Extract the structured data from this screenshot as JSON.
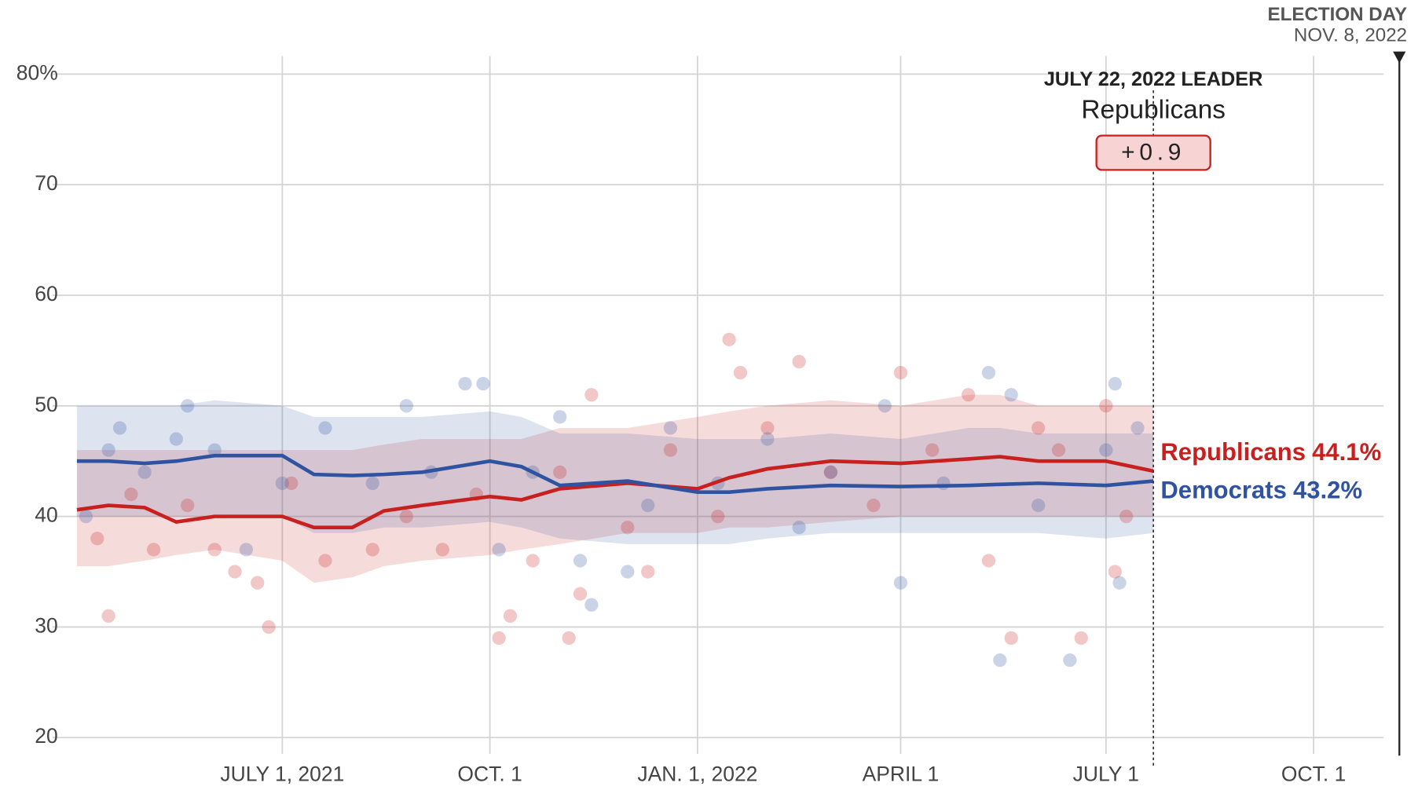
{
  "chart_data": {
    "type": "line",
    "x": [
      "2021-04-01",
      "2021-04-15",
      "2021-05-01",
      "2021-05-15",
      "2021-06-01",
      "2021-07-01",
      "2021-07-15",
      "2021-08-01",
      "2021-08-15",
      "2021-09-01",
      "2021-10-01",
      "2021-10-15",
      "2021-11-01",
      "2021-12-01",
      "2022-01-01",
      "2022-01-15",
      "2022-02-01",
      "2022-03-01",
      "2022-04-01",
      "2022-05-01",
      "2022-05-15",
      "2022-06-01",
      "2022-07-01",
      "2022-07-22"
    ],
    "series": [
      {
        "name": "Republicans",
        "color": "#c8201e",
        "end_label": "44.1%",
        "values": [
          40.6,
          41.0,
          40.8,
          39.5,
          40.0,
          40.0,
          39.0,
          39.0,
          40.5,
          41.0,
          41.8,
          41.5,
          42.5,
          43.0,
          42.5,
          43.5,
          44.3,
          45.0,
          44.8,
          45.2,
          45.4,
          45.0,
          45.0,
          44.1
        ],
        "lower": [
          35.5,
          35.5,
          36,
          36.5,
          37,
          36,
          34,
          34.5,
          35.5,
          36,
          36.5,
          37,
          37.5,
          38.5,
          38.5,
          39,
          39,
          39.5,
          40,
          40,
          40,
          40,
          40,
          40
        ],
        "upper": [
          46,
          46,
          46,
          46,
          46,
          46,
          46,
          46,
          46.5,
          47,
          47,
          47,
          48,
          48,
          49,
          49.5,
          50,
          50.5,
          50,
          51,
          51,
          50,
          50,
          50
        ],
        "poll_x": [
          "2021-04-10",
          "2021-04-15",
          "2021-04-25",
          "2021-05-05",
          "2021-05-20",
          "2021-06-01",
          "2021-06-10",
          "2021-06-20",
          "2021-06-25",
          "2021-07-05",
          "2021-07-20",
          "2021-08-10",
          "2021-08-25",
          "2021-09-10",
          "2021-09-25",
          "2021-10-05",
          "2021-10-10",
          "2021-10-20",
          "2021-11-01",
          "2021-11-05",
          "2021-11-10",
          "2021-11-15",
          "2021-12-01",
          "2021-12-10",
          "2021-12-20",
          "2022-01-10",
          "2022-01-15",
          "2022-01-20",
          "2022-02-01",
          "2022-02-15",
          "2022-03-01",
          "2022-03-20",
          "2022-04-01",
          "2022-04-15",
          "2022-05-01",
          "2022-05-10",
          "2022-05-20",
          "2022-06-01",
          "2022-06-10",
          "2022-06-20",
          "2022-07-01",
          "2022-07-05",
          "2022-07-10"
        ],
        "poll_values": [
          38,
          31,
          42,
          37,
          41,
          37,
          35,
          34,
          30,
          43,
          36,
          37,
          40,
          37,
          42,
          29,
          31,
          36,
          44,
          29,
          33,
          51,
          39,
          35,
          46,
          40,
          56,
          53,
          48,
          54,
          44,
          41,
          53,
          46,
          51,
          36,
          29,
          48,
          46,
          29,
          50,
          35,
          40
        ]
      },
      {
        "name": "Democrats",
        "color": "#2f53a0",
        "end_label": "43.2%",
        "values": [
          45.0,
          45.0,
          44.8,
          45.0,
          45.5,
          45.5,
          43.8,
          43.7,
          43.8,
          44.0,
          45.0,
          44.5,
          42.8,
          43.2,
          42.2,
          42.2,
          42.5,
          42.8,
          42.7,
          42.8,
          42.9,
          43.0,
          42.8,
          43.2
        ],
        "lower": [
          40,
          40,
          40,
          40,
          40,
          40,
          38.5,
          38.5,
          39,
          39,
          39.5,
          39,
          38,
          37.5,
          37.5,
          37.5,
          38,
          38.5,
          38.5,
          38.5,
          38.5,
          38.5,
          38,
          38.5
        ],
        "upper": [
          50,
          50,
          50,
          50,
          50.5,
          50,
          49,
          49,
          49,
          49,
          49.5,
          49,
          47.5,
          47.5,
          47,
          47,
          47,
          47.5,
          47,
          48,
          48,
          47.5,
          47.5,
          47.5
        ],
        "poll_x": [
          "2021-04-05",
          "2021-04-15",
          "2021-04-20",
          "2021-05-01",
          "2021-05-15",
          "2021-05-20",
          "2021-06-01",
          "2021-06-15",
          "2021-07-01",
          "2021-07-20",
          "2021-08-10",
          "2021-08-25",
          "2021-09-05",
          "2021-09-20",
          "2021-09-28",
          "2021-10-05",
          "2021-10-20",
          "2021-11-01",
          "2021-11-10",
          "2021-11-15",
          "2021-12-01",
          "2021-12-10",
          "2021-12-20",
          "2022-01-10",
          "2022-02-01",
          "2022-02-15",
          "2022-03-01",
          "2022-03-25",
          "2022-04-01",
          "2022-04-20",
          "2022-05-10",
          "2022-05-15",
          "2022-05-20",
          "2022-06-01",
          "2022-06-15",
          "2022-07-01",
          "2022-07-05",
          "2022-07-07",
          "2022-07-15"
        ],
        "poll_values": [
          40,
          46,
          48,
          44,
          47,
          50,
          46,
          37,
          43,
          48,
          43,
          50,
          44,
          52,
          52,
          37,
          44,
          49,
          36,
          32,
          35,
          41,
          48,
          43,
          47,
          39,
          44,
          50,
          34,
          43,
          53,
          27,
          51,
          41,
          27,
          46,
          52,
          34,
          48
        ]
      }
    ],
    "xlim": [
      "2021-04-01",
      "2022-11-01"
    ],
    "xticks": [
      {
        "value": "2021-07-01",
        "label": "JULY 1, 2021"
      },
      {
        "value": "2021-10-01",
        "label": "OCT. 1"
      },
      {
        "value": "2022-01-01",
        "label": "JAN. 1, 2022"
      },
      {
        "value": "2022-04-01",
        "label": "APRIL 1"
      },
      {
        "value": "2022-07-01",
        "label": "JULY 1"
      },
      {
        "value": "2022-10-01",
        "label": "OCT. 1"
      }
    ],
    "ylim": [
      20,
      80
    ],
    "yticks": [
      20,
      30,
      40,
      50,
      60,
      70,
      {
        "value": 80,
        "label": "80%"
      }
    ],
    "grid": true,
    "current_date": "2022-07-22",
    "leader_heading": "JULY 22, 2022 LEADER",
    "leader": "Republicans",
    "leader_margin": "+0.9",
    "election_date": "2022-11-08",
    "election_heading": "ELECTION DAY",
    "election_date_label": "NOV. 8, 2022"
  }
}
